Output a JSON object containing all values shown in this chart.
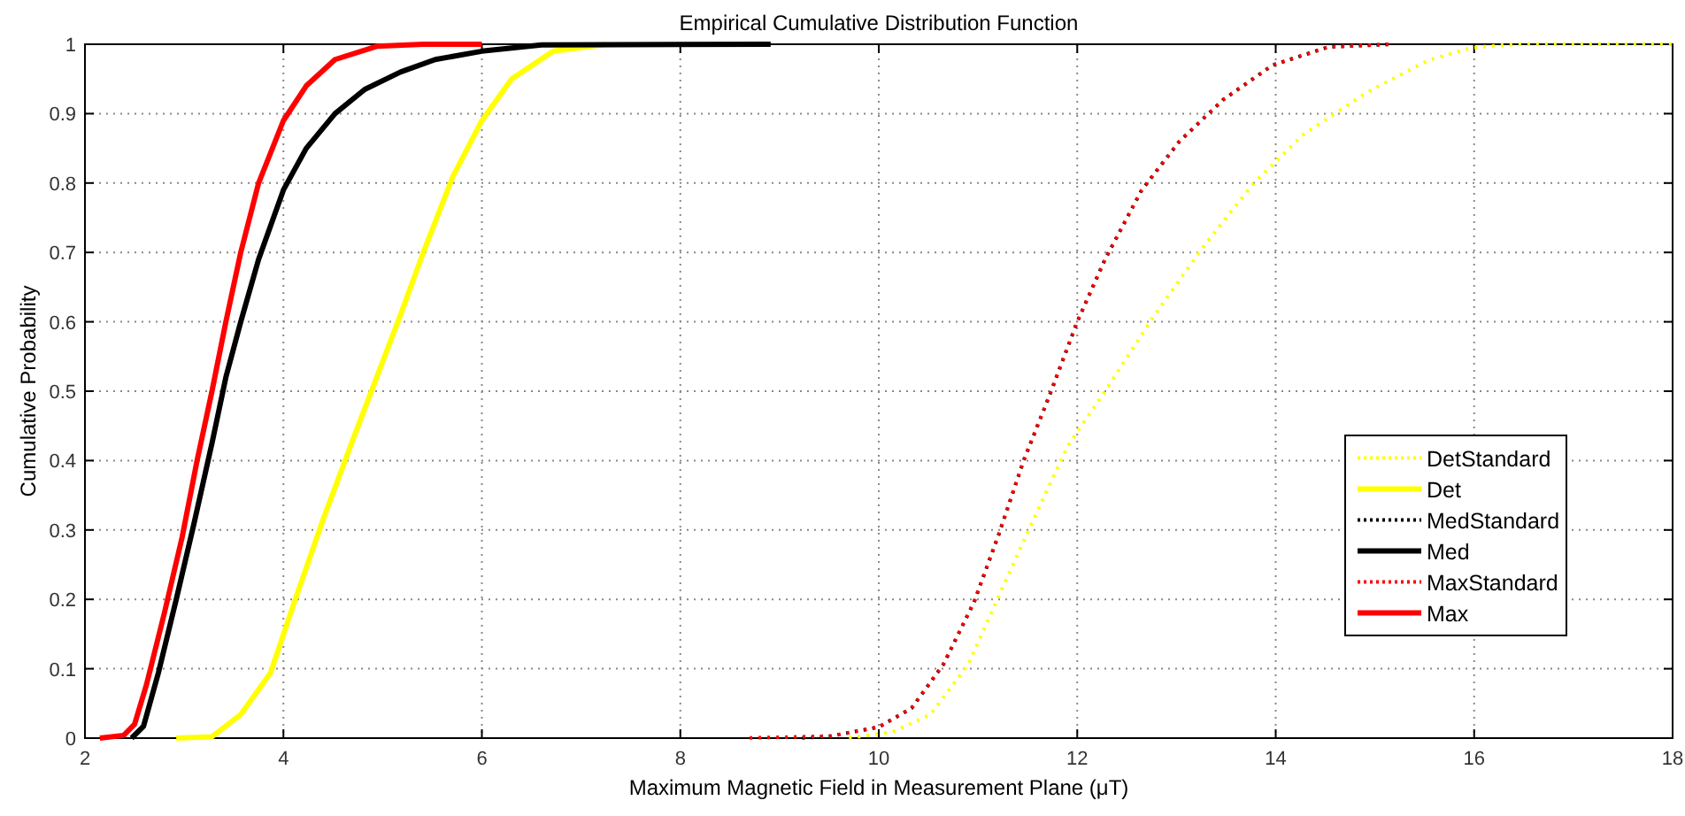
{
  "chart_data": {
    "type": "line",
    "title": "Empirical Cumulative Distribution Function",
    "xlabel": "Maximum Magnetic Field in Measurement Plane (μT)",
    "ylabel": "Cumulative Probability",
    "xlim": [
      2,
      18
    ],
    "ylim": [
      0,
      1
    ],
    "xticks": [
      2,
      4,
      6,
      8,
      10,
      12,
      14,
      16,
      18
    ],
    "yticks": [
      0,
      0.1,
      0.2,
      0.3,
      0.4,
      0.5,
      0.6,
      0.7,
      0.8,
      0.9,
      1
    ],
    "grid": true,
    "legend": "bottom right",
    "marker": "none",
    "series": [
      {
        "name": "DetStandard",
        "color": "#ffff00",
        "line_style": "dotted",
        "x": [
          9.7,
          10.14,
          10.52,
          10.9,
          11.21,
          11.52,
          11.9,
          12.28,
          12.78,
          13.28,
          13.78,
          14.28,
          14.91,
          15.54,
          15.97,
          16.41,
          18
        ],
        "values": [
          0,
          0.009,
          0.034,
          0.106,
          0.205,
          0.303,
          0.42,
          0.5,
          0.61,
          0.71,
          0.8,
          0.87,
          0.93,
          0.977,
          0.995,
          1,
          1
        ]
      },
      {
        "name": "Det",
        "color": "#ffff00",
        "line_style": "solid",
        "x": [
          2.92,
          3.28,
          3.57,
          3.87,
          4.11,
          4.4,
          4.7,
          4.94,
          5.18,
          5.41,
          5.71,
          6,
          6.3,
          6.72,
          7.25
        ],
        "values": [
          0,
          0.002,
          0.034,
          0.094,
          0.196,
          0.315,
          0.43,
          0.52,
          0.61,
          0.7,
          0.81,
          0.89,
          0.95,
          0.99,
          1
        ]
      },
      {
        "name": "MedStandard",
        "color": "#000000",
        "line_style": "dotted",
        "x": [
          9.2,
          9.52,
          10,
          10.33,
          10.65,
          10.96,
          11.21,
          11.46,
          11.71,
          12,
          12.28,
          12.65,
          13.03,
          13.47,
          13.97,
          14.53,
          15.16
        ],
        "values": [
          0,
          0.003,
          0.016,
          0.043,
          0.106,
          0.196,
          0.294,
          0.4,
          0.49,
          0.6,
          0.69,
          0.79,
          0.86,
          0.92,
          0.97,
          0.996,
          1
        ]
      },
      {
        "name": "Med",
        "color": "#000000",
        "line_style": "solid",
        "x": [
          2.47,
          2.59,
          2.74,
          2.92,
          3.1,
          3.28,
          3.42,
          3.57,
          3.75,
          4,
          4.23,
          4.52,
          4.82,
          5.18,
          5.53,
          6,
          6.6,
          8.91
        ],
        "values": [
          0,
          0.017,
          0.094,
          0.2,
          0.31,
          0.425,
          0.52,
          0.6,
          0.69,
          0.79,
          0.85,
          0.9,
          0.935,
          0.96,
          0.978,
          0.99,
          0.999,
          1
        ]
      },
      {
        "name": "MaxStandard",
        "color": "#ff0000",
        "line_style": "dotted",
        "x": [
          8.64,
          9.52,
          10,
          10.33,
          10.65,
          10.96,
          11.21,
          11.46,
          11.71,
          12,
          12.28,
          12.65,
          13.03,
          13.47,
          13.97,
          14.53,
          15.16
        ],
        "values": [
          0,
          0.003,
          0.016,
          0.043,
          0.106,
          0.196,
          0.294,
          0.4,
          0.49,
          0.6,
          0.69,
          0.79,
          0.86,
          0.92,
          0.97,
          0.996,
          1
        ]
      },
      {
        "name": "Max",
        "color": "#ff0000",
        "line_style": "solid",
        "x": [
          2.15,
          2.39,
          2.5,
          2.62,
          2.8,
          2.98,
          3.13,
          3.28,
          3.42,
          3.57,
          3.75,
          4,
          4.23,
          4.52,
          4.94,
          5.41,
          6
        ],
        "values": [
          0,
          0.004,
          0.02,
          0.077,
          0.18,
          0.29,
          0.4,
          0.5,
          0.6,
          0.7,
          0.8,
          0.89,
          0.94,
          0.978,
          0.997,
          1,
          1
        ]
      }
    ]
  }
}
